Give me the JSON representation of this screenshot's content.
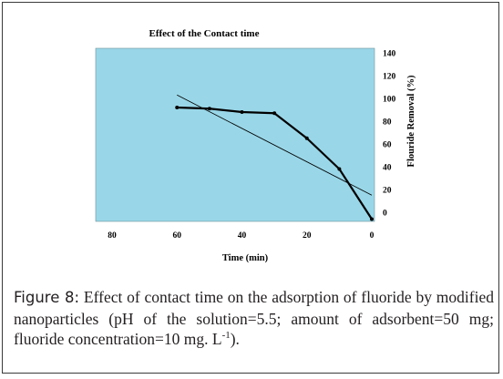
{
  "colors": {
    "plot_background": "#99D7E8",
    "plot_border": "#6d8f99",
    "series_line": "#000000",
    "trend_line": "#000000"
  },
  "chart_data": {
    "type": "line",
    "title": "Effect of the Contact time",
    "xlabel": "Time (min)",
    "ylabel": "Flouride Removal (%)",
    "x_reversed": true,
    "xlim": [
      80,
      0
    ],
    "ylim": [
      0,
      140
    ],
    "x_ticks": [
      80,
      60,
      40,
      20,
      0
    ],
    "y_ticks": [
      0,
      20,
      40,
      60,
      80,
      100,
      120,
      140
    ],
    "y_axis_position": "right",
    "grid": false,
    "legend": "none",
    "series": [
      {
        "x": [
          60,
          50,
          40,
          30,
          20,
          10,
          0
        ],
        "y": [
          92,
          91,
          88,
          87,
          65,
          38,
          -6
        ]
      }
    ],
    "trendline": {
      "x": [
        60,
        0
      ],
      "y": [
        103,
        15
      ]
    }
  },
  "caption": {
    "label": "Figure 8:",
    "text_before_superscript": " Effect of contact time on the adsorption of fluoride by modified nanoparticles (pH of the solution=5.5; amount of adsorbent=50 mg; fluoride concentration=10 mg. L",
    "superscript": "-1",
    "text_after_superscript": ")."
  }
}
